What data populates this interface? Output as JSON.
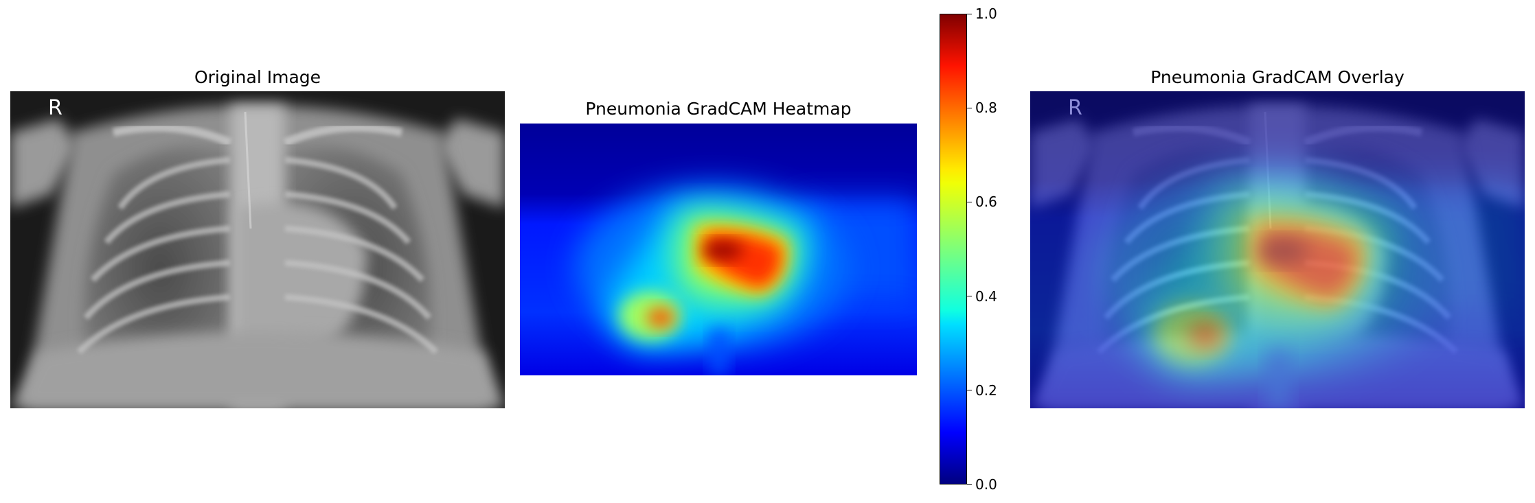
{
  "panels": {
    "original": {
      "title": "Original Image",
      "marker": "R"
    },
    "heatmap": {
      "title": "Pneumonia GradCAM Heatmap"
    },
    "overlay": {
      "title": "Pneumonia GradCAM Overlay",
      "marker": "R"
    }
  },
  "chart_data": [
    {
      "type": "image",
      "title": "Original Image",
      "content": "grayscale chest x-ray (pediatric, AP view)"
    },
    {
      "type": "heatmap",
      "title": "Pneumonia GradCAM Heatmap",
      "colormap": "jet",
      "colorbar": {
        "range": [
          0.0,
          1.0
        ],
        "ticks": [
          "0.0",
          "0.2",
          "0.4",
          "0.6",
          "0.8",
          "1.0"
        ]
      },
      "hotspots": [
        {
          "region": "upper-center (right of midline)",
          "value": 1.0
        },
        {
          "region": "lower-left",
          "value": 0.85
        }
      ]
    },
    {
      "type": "image",
      "title": "Pneumonia GradCAM Overlay",
      "content": "heatmap overlaid on x-ray"
    }
  ],
  "colors": {
    "jet_low": "#00008f",
    "jet_high": "#7f0000"
  }
}
